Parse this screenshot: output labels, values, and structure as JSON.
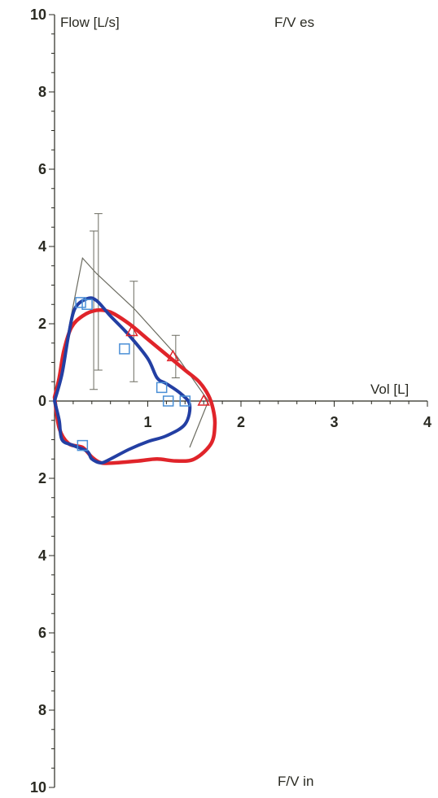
{
  "chart_data": {
    "type": "line",
    "title": "",
    "ylabel": "Flow [L/s]",
    "xlabel": "Vol [L]",
    "label_expiration": "F/V es",
    "label_inspiration": "F/V in",
    "xlim": [
      0,
      4
    ],
    "ylim": [
      -10,
      10
    ],
    "x_ticks": [
      1,
      2,
      3,
      4
    ],
    "y_ticks_up": [
      0,
      2,
      4,
      6,
      8,
      10
    ],
    "y_ticks_down": [
      2,
      4,
      6,
      8,
      10
    ],
    "grid": false,
    "colors": {
      "axis": "#2a2a22",
      "predicted": "#6b6b60",
      "error_bars": "#6b6b60",
      "red_loop": "#e0242a",
      "blue_loop": "#233fa3",
      "blue_markers": "#4a8fd6",
      "red_markers": "#e0242a"
    },
    "predicted_curve": [
      [
        0,
        0
      ],
      [
        0.3,
        3.7
      ],
      [
        0.45,
        3.3
      ],
      [
        0.85,
        2.4
      ],
      [
        1.3,
        1.2
      ],
      [
        1.65,
        0
      ],
      [
        1.45,
        -1.2
      ]
    ],
    "error_bars": [
      {
        "x": 0.42,
        "y": 2.35,
        "low": 0.3,
        "high": 4.4
      },
      {
        "x": 0.47,
        "y": 2.8,
        "low": 0.8,
        "high": 4.85
      },
      {
        "x": 0.85,
        "y": 1.8,
        "low": 0.5,
        "high": 3.1
      },
      {
        "x": 1.3,
        "y": 1.15,
        "low": 0.6,
        "high": 1.7
      }
    ],
    "series": [
      {
        "values": [
          [
            0.0,
            0.1
          ],
          [
            0.05,
            0.6
          ],
          [
            0.1,
            1.3
          ],
          [
            0.18,
            1.9
          ],
          [
            0.3,
            2.2
          ],
          [
            0.45,
            2.35
          ],
          [
            0.6,
            2.3
          ],
          [
            0.8,
            2.0
          ],
          [
            1.0,
            1.6
          ],
          [
            1.2,
            1.2
          ],
          [
            1.4,
            0.8
          ],
          [
            1.55,
            0.5
          ],
          [
            1.65,
            0.15
          ],
          [
            1.7,
            -0.2
          ],
          [
            1.72,
            -0.6
          ],
          [
            1.68,
            -1.1
          ],
          [
            1.5,
            -1.5
          ],
          [
            1.3,
            -1.55
          ],
          [
            1.1,
            -1.5
          ],
          [
            0.9,
            -1.55
          ],
          [
            0.65,
            -1.6
          ],
          [
            0.5,
            -1.6
          ],
          [
            0.4,
            -1.45
          ],
          [
            0.3,
            -1.2
          ],
          [
            0.15,
            -1.1
          ],
          [
            0.05,
            -0.7
          ],
          [
            0.0,
            0.1
          ]
        ]
      },
      {
        "values": [
          [
            0.0,
            0.0
          ],
          [
            0.08,
            0.7
          ],
          [
            0.15,
            1.7
          ],
          [
            0.22,
            2.4
          ],
          [
            0.35,
            2.65
          ],
          [
            0.45,
            2.6
          ],
          [
            0.6,
            2.2
          ],
          [
            0.8,
            1.7
          ],
          [
            1.0,
            1.1
          ],
          [
            1.1,
            0.6
          ],
          [
            1.2,
            0.45
          ],
          [
            1.35,
            0.2
          ],
          [
            1.45,
            -0.1
          ],
          [
            1.4,
            -0.6
          ],
          [
            1.2,
            -0.9
          ],
          [
            1.0,
            -1.05
          ],
          [
            0.8,
            -1.25
          ],
          [
            0.6,
            -1.5
          ],
          [
            0.5,
            -1.6
          ],
          [
            0.4,
            -1.5
          ],
          [
            0.35,
            -1.3
          ],
          [
            0.2,
            -1.15
          ],
          [
            0.08,
            -1.0
          ],
          [
            0.05,
            -0.5
          ],
          [
            0.0,
            0.0
          ]
        ]
      }
    ],
    "markers_blue": [
      [
        0.28,
        2.55
      ],
      [
        0.35,
        2.5
      ],
      [
        0.75,
        1.35
      ],
      [
        1.15,
        0.35
      ],
      [
        1.22,
        0.0
      ],
      [
        1.4,
        0.0
      ],
      [
        0.3,
        -1.15
      ]
    ],
    "markers_red": [
      [
        0.83,
        1.8
      ],
      [
        1.27,
        1.15
      ],
      [
        1.6,
        0.0
      ]
    ]
  }
}
